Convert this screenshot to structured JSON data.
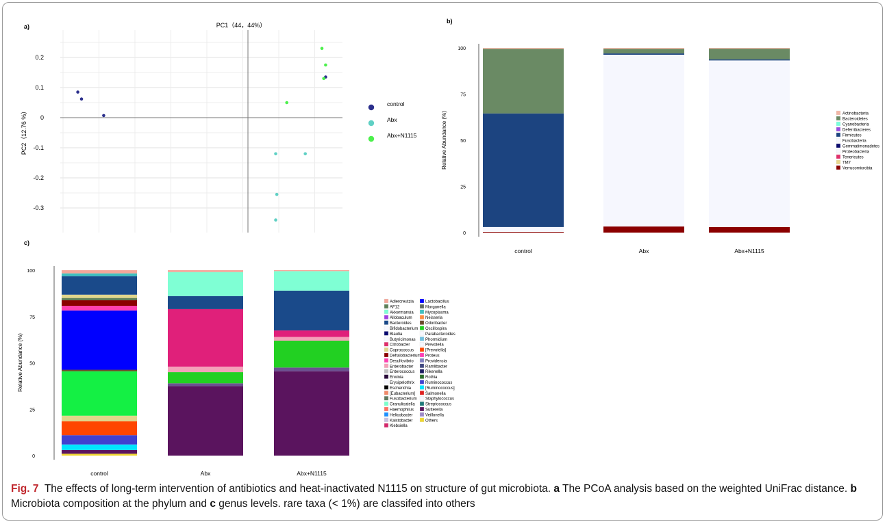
{
  "chart_data": [
    {
      "type": "scatter",
      "panel_label": "a)",
      "xlabel": "PC1（44，44%）",
      "ylabel": "PC2（12.76 %）",
      "ylim": [
        -0.36,
        0.27
      ],
      "xlim": [
        -0.5,
        0.5
      ],
      "y_ticks": [
        "0.2",
        "0.1",
        "0",
        "-0.1",
        "-0.2",
        "-0.3"
      ],
      "y_tick_values": [
        0.2,
        0.1,
        0,
        -0.1,
        -0.2,
        -0.3
      ],
      "grid": true,
      "legend_position": "right",
      "series": [
        {
          "name": "control",
          "color": "#2b2f8c",
          "points": [
            [
              -0.46,
              0.085
            ],
            [
              -0.45,
              0.062
            ],
            [
              -0.39,
              0.007
            ],
            [
              0.21,
              0.135
            ]
          ]
        },
        {
          "name": "Abx",
          "color": "#5fd0c4",
          "points": [
            [
              0.075,
              -0.12
            ],
            [
              0.155,
              -0.12
            ],
            [
              0.078,
              -0.255
            ],
            [
              0.075,
              -0.34
            ]
          ]
        },
        {
          "name": "Abx+N1115",
          "color": "#4cf04c",
          "points": [
            [
              0.2,
              0.23
            ],
            [
              0.21,
              0.175
            ],
            [
              0.205,
              0.13
            ],
            [
              0.105,
              0.05
            ]
          ]
        }
      ]
    },
    {
      "type": "bar",
      "stacked": true,
      "panel_label": "b)",
      "ylabel": "Relative Abundance (%)",
      "ylim": [
        0,
        100
      ],
      "y_ticks": [
        "100",
        "75",
        "50",
        "25",
        "0"
      ],
      "categories": [
        "control",
        "Abx",
        "Abx+N1115"
      ],
      "legend": [
        {
          "name": "Actinobacteria",
          "color": "#f2b6a6"
        },
        {
          "name": "Bacteroidetes",
          "color": "#6a8a64"
        },
        {
          "name": "Cyanobacteria",
          "color": "#7affdc"
        },
        {
          "name": "Deferribacteres",
          "color": "#9b4dde"
        },
        {
          "name": "Firmicutes",
          "color": "#1c4480"
        },
        {
          "name": "Fusobacteria",
          "color": "#f6f7fe"
        },
        {
          "name": "Gemmatimonadetes",
          "color": "#0b0b6e"
        },
        {
          "name": "Proteobacteria",
          "color": "#f6f7fe"
        },
        {
          "name": "Tenericutes",
          "color": "#e0306c"
        },
        {
          "name": "TM7",
          "color": "#e8d88e"
        },
        {
          "name": "Verrucomicrobia",
          "color": "#8b0000"
        }
      ],
      "series": [
        {
          "name": "Verrucomicrobia",
          "color": "#8b0000",
          "values": [
            0.4,
            3.3,
            3.0
          ]
        },
        {
          "name": "Proteobacteria",
          "color": "#f6f7fe",
          "values": [
            2.6,
            93.0,
            90.2
          ]
        },
        {
          "name": "Firmicutes",
          "color": "#1c4480",
          "values": [
            61.5,
            0.7,
            0.6
          ]
        },
        {
          "name": "Bacteroidetes",
          "color": "#6a8a64",
          "values": [
            35.0,
            2.5,
            5.8
          ]
        },
        {
          "name": "Actinobacteria",
          "color": "#f2b6a6",
          "values": [
            0.5,
            0.5,
            0.4
          ]
        }
      ]
    },
    {
      "type": "bar",
      "stacked": true,
      "panel_label": "c)",
      "ylabel": "Relative Abundance (%)",
      "ylim": [
        0,
        100
      ],
      "y_ticks": [
        "100",
        "75",
        "50",
        "25",
        "0"
      ],
      "categories": [
        "control",
        "Abx",
        "Abx+N1115"
      ],
      "legend_col1": [
        {
          "name": "Adlercreutzia",
          "color": "#f4a79a"
        },
        {
          "name": "AF12",
          "color": "#5c7f57"
        },
        {
          "name": "Akkermansia",
          "color": "#7fffd4"
        },
        {
          "name": "Allobaculum",
          "color": "#a040e0"
        },
        {
          "name": "Bacteroides",
          "color": "#1a4a8a"
        },
        {
          "name": "Bifidobacterium",
          "color": "#f7f8ff"
        },
        {
          "name": "Blautia",
          "color": "#0a0a70"
        },
        {
          "name": "Butyricimonas",
          "color": "#f7f8ff"
        },
        {
          "name": "Citrobacter",
          "color": "#e0306c"
        },
        {
          "name": "Coprococcus",
          "color": "#e0d68c"
        },
        {
          "name": "Dehalobacterium",
          "color": "#8b0000"
        },
        {
          "name": "Desulfovibrio",
          "color": "#ff40b0"
        },
        {
          "name": "Enterobacter",
          "color": "#f4a0b8"
        },
        {
          "name": "Enterococcus",
          "color": "#c0c0c0"
        },
        {
          "name": "Erwinia",
          "color": "#2a0a3a"
        },
        {
          "name": "Erysipelothrix",
          "color": "#f7f8ff"
        },
        {
          "name": "Escherichia",
          "color": "#050505"
        },
        {
          "name": "[Eubacterium]",
          "color": "#f08a6a"
        },
        {
          "name": "Fusobacterium",
          "color": "#607a60"
        },
        {
          "name": "Granulicatella",
          "color": "#7affcc"
        },
        {
          "name": "Haemophilus",
          "color": "#ff6f61"
        },
        {
          "name": "Helicobacter",
          "color": "#1e90ff"
        },
        {
          "name": "Kaistobacter",
          "color": "#c8c0e0"
        },
        {
          "name": "Klebsiella",
          "color": "#d4286c"
        }
      ],
      "legend_col2": [
        {
          "name": "Lactobacillus",
          "color": "#0000ff"
        },
        {
          "name": "Morganella",
          "color": "#606b60"
        },
        {
          "name": "Mycoplasma",
          "color": "#40c0c0"
        },
        {
          "name": "Neisseria",
          "color": "#ff8c40"
        },
        {
          "name": "Odoribacter",
          "color": "#6b4a2a"
        },
        {
          "name": "Oscillospira",
          "color": "#22d022"
        },
        {
          "name": "Parabacteroides",
          "color": "#f7f8ff"
        },
        {
          "name": "Phormidium",
          "color": "#70c0e0"
        },
        {
          "name": "Prevotella",
          "color": "#f7f8ff"
        },
        {
          "name": "[Prevotella]",
          "color": "#ff4500"
        },
        {
          "name": "Proteus",
          "color": "#ff3cb4"
        },
        {
          "name": "Providencia",
          "color": "#8080c0"
        },
        {
          "name": "Ramlibacter",
          "color": "#404880"
        },
        {
          "name": "Rikenella",
          "color": "#1a1a60"
        },
        {
          "name": "Rothia",
          "color": "#2b6e2b"
        },
        {
          "name": "Ruminococcus",
          "color": "#4040d0"
        },
        {
          "name": "[Ruminococcus]",
          "color": "#00e5ff"
        },
        {
          "name": "Salmonella",
          "color": "#e02020"
        },
        {
          "name": "Staphylococcus",
          "color": "#f7f8ff"
        },
        {
          "name": "Streptococcus",
          "color": "#1e7a7a"
        },
        {
          "name": "Sutterella",
          "color": "#5a145e"
        },
        {
          "name": "Veillonella",
          "color": "#9c88c8"
        },
        {
          "name": "Others",
          "color": "#f0d830"
        }
      ],
      "stacks": [
        [
          {
            "name": "Others",
            "color": "#f0d830",
            "value": 1.0
          },
          {
            "name": "Sutterella",
            "color": "#5a145e",
            "value": 2.0
          },
          {
            "name": "[Ruminococcus]",
            "color": "#00e5ff",
            "value": 3.0
          },
          {
            "name": "Ruminococcus",
            "color": "#4040d0",
            "value": 5.0
          },
          {
            "name": "[Prevotella]",
            "color": "#ff4500",
            "value": 7.5
          },
          {
            "name": "Coprococcus",
            "color": "#e0d68c",
            "value": 3.0
          },
          {
            "name": "Oscillospira",
            "color": "#14f044",
            "value": 24.0
          },
          {
            "name": "Odoribacter",
            "color": "#6b4a2a",
            "value": 0.8
          },
          {
            "name": "Lactobacillus",
            "color": "#0000ff",
            "value": 32.0
          },
          {
            "name": "Desulfovibrio",
            "color": "#ff40b0",
            "value": 2.5
          },
          {
            "name": "Dehalobacterium",
            "color": "#8b0000",
            "value": 3.0
          },
          {
            "name": "AF12",
            "color": "#5c7f57",
            "value": 1.2
          },
          {
            "name": "Coprococcus",
            "color": "#e0d68c",
            "value": 1.8
          },
          {
            "name": "Bacteroides",
            "color": "#1a4a8a",
            "value": 10.0
          },
          {
            "name": "Mycoplasma",
            "color": "#40c0c0",
            "value": 1.5
          },
          {
            "name": "Adlercreutzia",
            "color": "#f4a79a",
            "value": 1.7
          }
        ],
        [
          {
            "name": "Sutterella",
            "color": "#5a145e",
            "value": 37.5
          },
          {
            "name": "Ramlibacter",
            "color": "#6c5090",
            "value": 1.5
          },
          {
            "name": "Oscillospira",
            "color": "#22d022",
            "value": 6.0
          },
          {
            "name": "Enterobacter",
            "color": "#f4a0b8",
            "value": 3.0
          },
          {
            "name": "Citrobacter",
            "color": "#e0207a",
            "value": 31.0
          },
          {
            "name": "Bacteroides",
            "color": "#1a4a8a",
            "value": 7.0
          },
          {
            "name": "Akkermansia",
            "color": "#7fffd4",
            "value": 13.0
          },
          {
            "name": "Adlercreutzia",
            "color": "#f4a79a",
            "value": 1.0
          }
        ],
        [
          {
            "name": "Sutterella",
            "color": "#5a145e",
            "value": 45.5
          },
          {
            "name": "Ramlibacter",
            "color": "#6c5090",
            "value": 2.0
          },
          {
            "name": "Oscillospira",
            "color": "#22d022",
            "value": 14.5
          },
          {
            "name": "Enterobacter",
            "color": "#f4a0b8",
            "value": 2.0
          },
          {
            "name": "Citrobacter",
            "color": "#e0207a",
            "value": 3.5
          },
          {
            "name": "Bacteroides",
            "color": "#1a4a8a",
            "value": 21.5
          },
          {
            "name": "Akkermansia",
            "color": "#7fffd4",
            "value": 10.5
          },
          {
            "name": "Adlercreutzia",
            "color": "#f4a79a",
            "value": 0.5
          }
        ]
      ]
    }
  ],
  "caption": {
    "fig_label": "Fig. 7",
    "text1": "The effects of long-term intervention of antibiotics and heat-inactivated N1115 on structure of gut microbiota.",
    "a_label": "a",
    "text2": "The PCoA analysis based on the weighted UniFrac distance.",
    "b_label": "b",
    "text3": "Microbiota composition at the phylum and",
    "c_label": "c",
    "text4": "genus levels. rare taxa (< 1%) are classifed into others"
  }
}
